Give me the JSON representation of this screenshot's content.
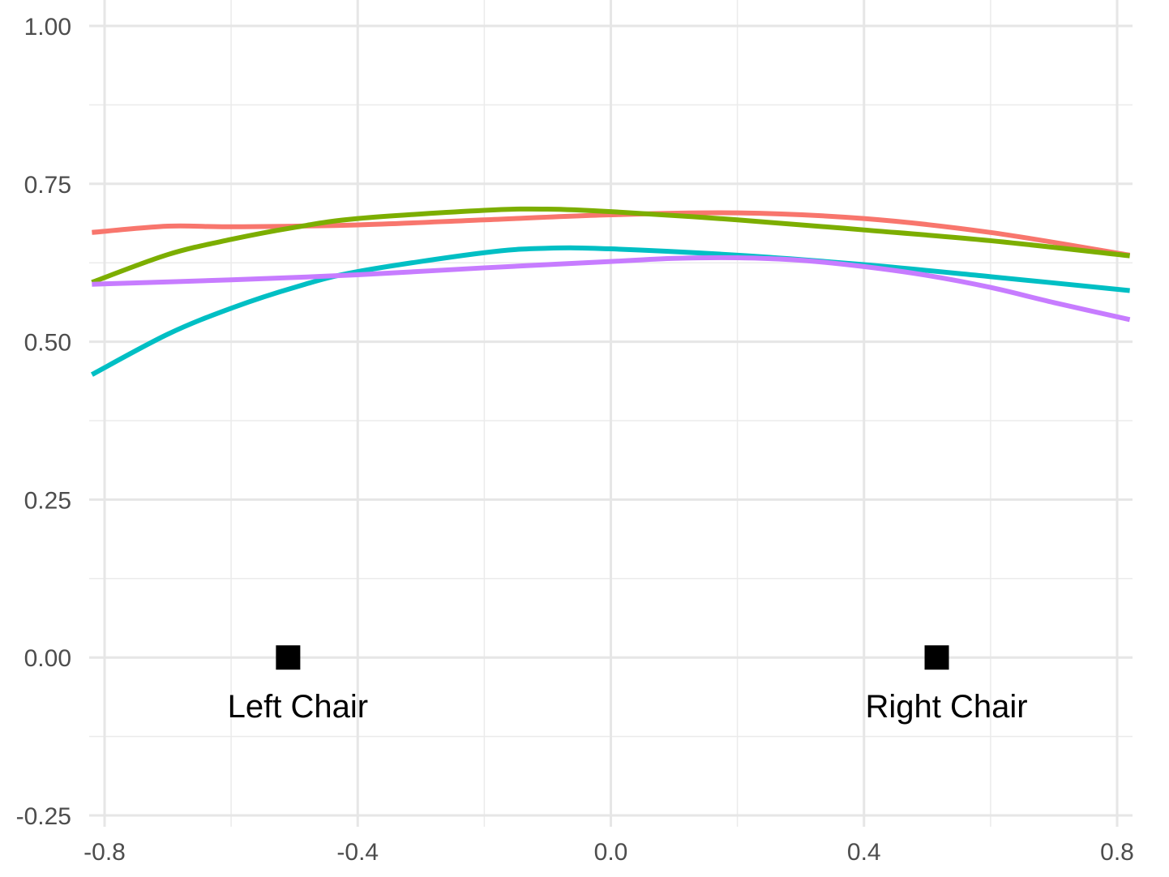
{
  "chart_data": {
    "type": "line",
    "title": "",
    "xlabel": "",
    "ylabel": "",
    "xlim": [
      -0.82,
      0.82
    ],
    "ylim": [
      -0.25,
      1.0
    ],
    "x_ticks": [
      -0.8,
      -0.4,
      0.0,
      0.4,
      0.8
    ],
    "x_tick_labels": [
      "-0.8",
      "-0.4",
      "0.0",
      "0.4",
      "0.8"
    ],
    "y_ticks": [
      -0.25,
      0.0,
      0.25,
      0.5,
      0.75,
      1.0
    ],
    "y_tick_labels": [
      "-0.25",
      "0.00",
      "0.25",
      "0.50",
      "0.75",
      "1.00"
    ],
    "grid": true,
    "legend": "none",
    "series": [
      {
        "color": "#F8766D",
        "x": [
          -0.82,
          -0.7,
          -0.6,
          -0.4,
          -0.2,
          0.0,
          0.2,
          0.4,
          0.6,
          0.82
        ],
        "y": [
          0.673,
          0.683,
          0.682,
          0.685,
          0.693,
          0.701,
          0.704,
          0.695,
          0.673,
          0.637
        ]
      },
      {
        "color": "#7CAE00",
        "x": [
          -0.82,
          -0.7,
          -0.6,
          -0.5,
          -0.4,
          -0.2,
          -0.1,
          0.0,
          0.2,
          0.4,
          0.6,
          0.82
        ],
        "y": [
          0.594,
          0.638,
          0.662,
          0.681,
          0.695,
          0.708,
          0.71,
          0.706,
          0.693,
          0.677,
          0.66,
          0.636
        ]
      },
      {
        "color": "#00BFC4",
        "x": [
          -0.82,
          -0.7,
          -0.6,
          -0.5,
          -0.4,
          -0.2,
          -0.1,
          0.0,
          0.2,
          0.4,
          0.6,
          0.82
        ],
        "y": [
          0.448,
          0.512,
          0.553,
          0.586,
          0.611,
          0.641,
          0.648,
          0.647,
          0.637,
          0.622,
          0.603,
          0.581
        ]
      },
      {
        "color": "#C77CFF",
        "x": [
          -0.82,
          -0.6,
          -0.4,
          -0.2,
          0.0,
          0.1,
          0.2,
          0.3,
          0.4,
          0.5,
          0.6,
          0.7,
          0.82
        ],
        "y": [
          0.591,
          0.598,
          0.606,
          0.617,
          0.627,
          0.632,
          0.633,
          0.629,
          0.619,
          0.605,
          0.586,
          0.562,
          0.535
        ]
      }
    ],
    "annotations": [
      {
        "text": "Left Chair",
        "x": -0.51,
        "y": 0.0,
        "marker": "square"
      },
      {
        "text": "Right Chair",
        "x": 0.515,
        "y": 0.0,
        "marker": "square"
      }
    ]
  }
}
